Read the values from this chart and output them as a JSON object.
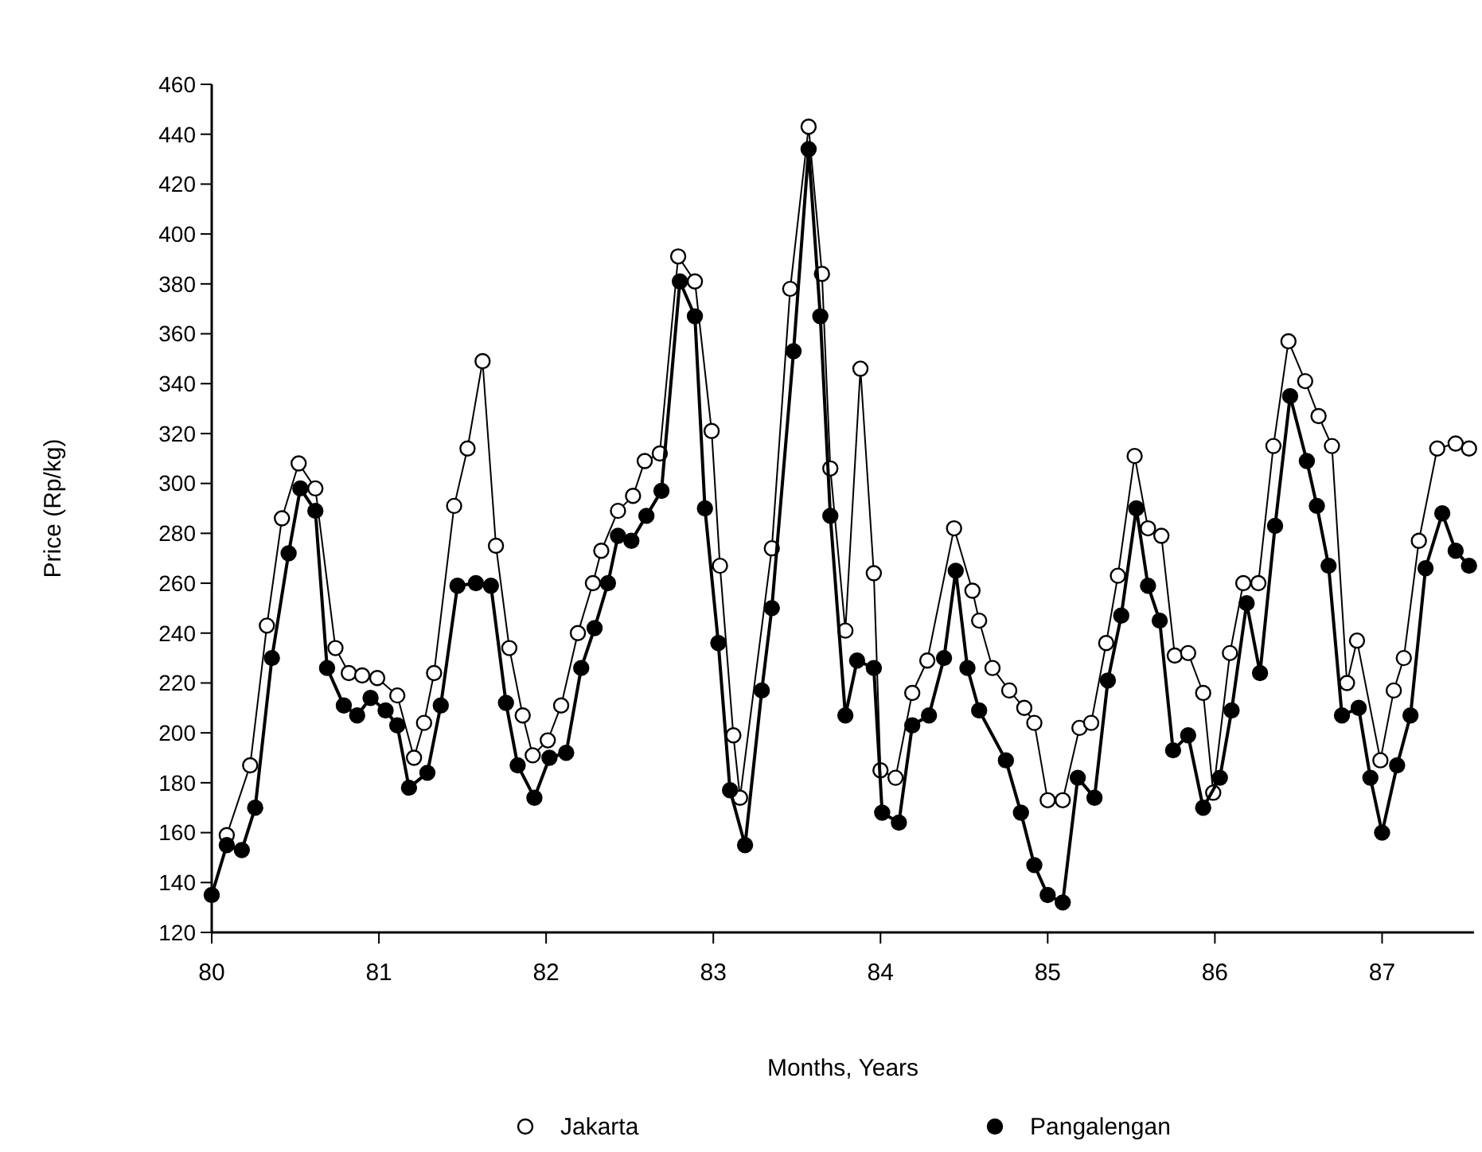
{
  "chart_data": {
    "type": "line",
    "xlabel": "Months, Years",
    "ylabel": "Price (Rp/kg)",
    "xlim": [
      80,
      87.55
    ],
    "xticks": [
      80,
      81,
      82,
      83,
      84,
      85,
      86,
      87
    ],
    "ylim": [
      120,
      460
    ],
    "yticks": [
      120,
      140,
      160,
      180,
      200,
      220,
      240,
      260,
      280,
      300,
      320,
      340,
      360,
      380,
      400,
      420,
      440,
      460
    ],
    "grid": false,
    "legend": "bottom",
    "marker": "circle",
    "line_style": "solid",
    "series": [
      {
        "name": "Jakarta",
        "color": "#000000",
        "x": [
          80.09,
          80.23,
          80.33,
          80.42,
          80.52,
          80.62,
          80.74,
          80.82,
          80.9,
          80.99,
          81.11,
          81.21,
          81.27,
          81.33,
          81.45,
          81.53,
          81.62,
          81.7,
          81.78,
          81.86,
          81.92,
          82.01,
          82.09,
          82.19,
          82.28,
          82.33,
          82.43,
          82.52,
          82.59,
          82.68,
          82.79,
          82.89,
          82.99,
          83.04,
          83.12,
          83.16,
          83.35,
          83.46,
          83.57,
          83.65,
          83.7,
          83.79,
          83.88,
          83.96,
          84,
          84.09,
          84.19,
          84.28,
          84.44,
          84.55,
          84.59,
          84.67,
          84.77,
          84.86,
          84.92,
          85,
          85.09,
          85.19,
          85.26,
          85.35,
          85.42,
          85.52,
          85.6,
          85.68,
          85.76,
          85.84,
          85.93,
          85.99,
          86.09,
          86.17,
          86.26,
          86.35,
          86.44,
          86.54,
          86.62,
          86.7,
          86.79,
          86.85,
          86.99,
          87.07,
          87.13,
          87.22,
          87.33,
          87.44,
          87.52
        ],
        "values": [
          159,
          187,
          243,
          286,
          308,
          298,
          234,
          224,
          223,
          222,
          215,
          190,
          204,
          224,
          291,
          314,
          349,
          275,
          234,
          207,
          191,
          197,
          211,
          240,
          260,
          273,
          289,
          295,
          309,
          312,
          391,
          381,
          321,
          267,
          199,
          174,
          274,
          378,
          443,
          384,
          306,
          241,
          346,
          264,
          185,
          182,
          216,
          229,
          282,
          257,
          245,
          226,
          217,
          210,
          204,
          173,
          173,
          202,
          204,
          236,
          263,
          311,
          282,
          279,
          231,
          232,
          216,
          176,
          232,
          260,
          260,
          315,
          357,
          341,
          327,
          315,
          220,
          237,
          189,
          217,
          230,
          277,
          314,
          316,
          314
        ]
      },
      {
        "name": "Pangalengan",
        "color": "#000000",
        "x": [
          80,
          80.09,
          80.18,
          80.26,
          80.36,
          80.46,
          80.53,
          80.62,
          80.69,
          80.79,
          80.87,
          80.95,
          81.04,
          81.11,
          81.18,
          81.29,
          81.37,
          81.47,
          81.58,
          81.67,
          81.76,
          81.83,
          81.93,
          82.02,
          82.12,
          82.21,
          82.29,
          82.37,
          82.43,
          82.51,
          82.6,
          82.69,
          82.8,
          82.89,
          82.95,
          83.03,
          83.1,
          83.19,
          83.29,
          83.35,
          83.48,
          83.57,
          83.64,
          83.7,
          83.79,
          83.86,
          83.96,
          84.01,
          84.11,
          84.19,
          84.29,
          84.38,
          84.45,
          84.52,
          84.59,
          84.75,
          84.84,
          84.92,
          85,
          85.09,
          85.18,
          85.28,
          85.36,
          85.44,
          85.53,
          85.6,
          85.67,
          85.75,
          85.84,
          85.93,
          86.03,
          86.1,
          86.19,
          86.27,
          86.36,
          86.45,
          86.55,
          86.61,
          86.68,
          86.76,
          86.86,
          86.93,
          87,
          87.09,
          87.17,
          87.26,
          87.36,
          87.44,
          87.52
        ],
        "values": [
          135,
          155,
          153,
          170,
          230,
          272,
          298,
          289,
          226,
          211,
          207,
          214,
          209,
          203,
          178,
          184,
          211,
          259,
          260,
          259,
          212,
          187,
          174,
          190,
          192,
          226,
          242,
          260,
          279,
          277,
          287,
          297,
          381,
          367,
          290,
          236,
          177,
          155,
          217,
          250,
          353,
          434,
          367,
          287,
          207,
          229,
          226,
          168,
          164,
          203,
          207,
          230,
          265,
          226,
          209,
          189,
          168,
          147,
          135,
          132,
          182,
          174,
          221,
          247,
          290,
          259,
          245,
          193,
          199,
          170,
          182,
          209,
          252,
          224,
          283,
          335,
          309,
          291,
          267,
          207,
          210,
          182,
          160,
          187,
          207,
          266,
          288,
          273,
          267
        ]
      }
    ]
  }
}
